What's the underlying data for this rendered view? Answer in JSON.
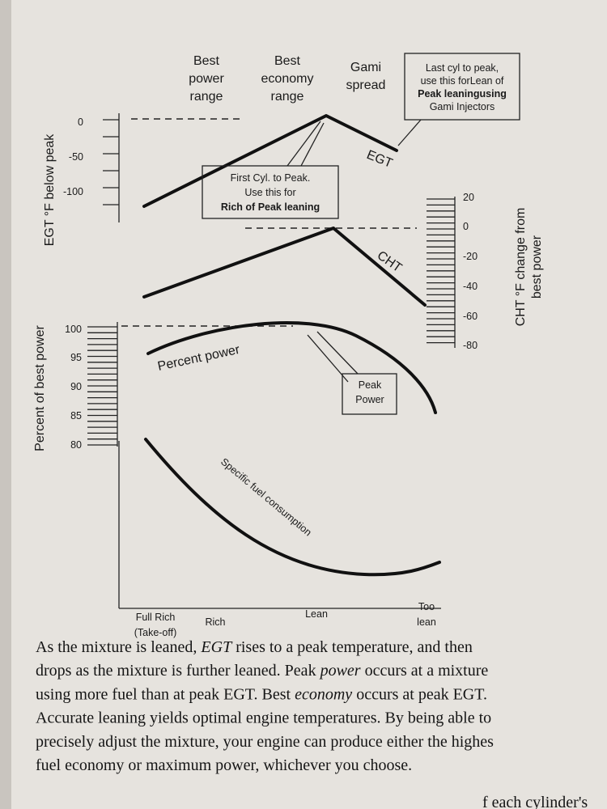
{
  "headers": [
    [
      "Best",
      "power",
      "range"
    ],
    [
      "Best",
      "economy",
      "range"
    ],
    [
      "Gami",
      "spread"
    ]
  ],
  "egt_axis": {
    "label": "EGT °F below peak",
    "ticks": [
      "0",
      "-50",
      "-100"
    ]
  },
  "power_axis": {
    "label": "Percent of best power",
    "ticks": [
      "100",
      "95",
      "90",
      "85",
      "80"
    ]
  },
  "cht_axis": {
    "label": [
      "CHT °F change from",
      "best power"
    ],
    "ticks": [
      "20",
      "0",
      "-20",
      "-40",
      "-60",
      "-80"
    ]
  },
  "curve_labels": {
    "egt": "EGT",
    "cht": "CHT",
    "power": "Percent power",
    "sfc": "Specific fuel consumption"
  },
  "callouts": {
    "last_cyl": [
      "Last cyl to peak,",
      "use this forLean of",
      "Peak leaningusing",
      "Gami Injectors"
    ],
    "first_cyl": [
      "First Cyl. to Peak.",
      "Use this for",
      "Rich of Peak leaning"
    ],
    "peak_power": [
      "Peak",
      "Power"
    ]
  },
  "x_labels": [
    [
      "Full Rich",
      "(Take-off)"
    ],
    [
      "Rich"
    ],
    [
      "Lean"
    ],
    [
      "Too",
      "lean"
    ]
  ],
  "paragraph": [
    [
      {
        "text": "As the mixture is leaned, "
      },
      {
        "text": "EGT",
        "italic": true
      },
      {
        "text": " rises to a peak temperature, and then"
      }
    ],
    [
      {
        "text": "drops as the mixture is further leaned. Peak "
      },
      {
        "text": "power",
        "italic": true
      },
      {
        "text": " occurs at a mixture"
      }
    ],
    [
      {
        "text": "using more fuel than at peak EGT. Best "
      },
      {
        "text": "economy",
        "italic": true
      },
      {
        "text": " occurs at peak EGT."
      }
    ],
    [
      {
        "text": "Accurate leaning yields optimal engine temperatures. By being able to"
      }
    ],
    [
      {
        "text": "precisely adjust the mixture, your engine can produce either the highes"
      }
    ],
    [
      {
        "text": "fuel economy or maximum power, whichever you choose."
      }
    ]
  ],
  "fragment": "f each cylinder's"
}
